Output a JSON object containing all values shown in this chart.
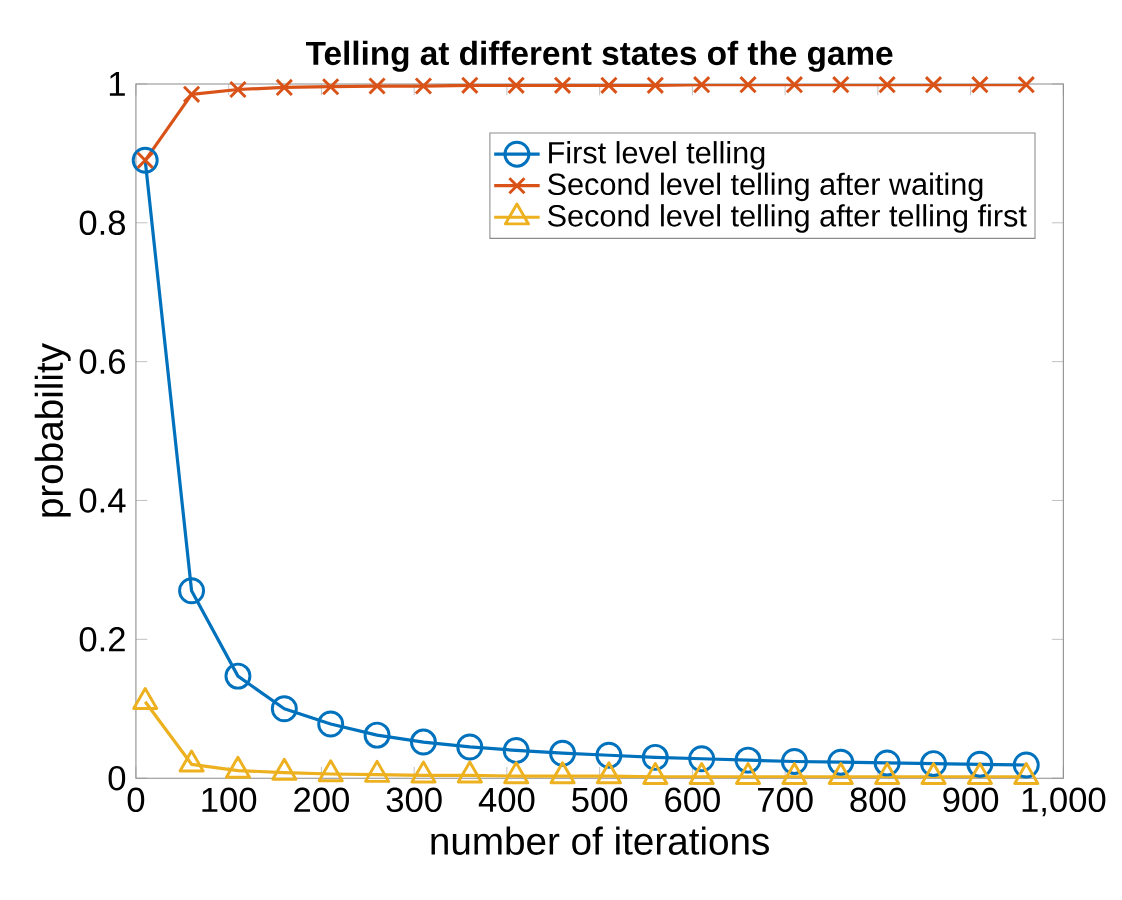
{
  "chart_data": {
    "type": "line",
    "title": "Telling at different states of the game",
    "xlabel": "number of iterations",
    "ylabel": "probability",
    "x": [
      10,
      60,
      110,
      160,
      210,
      260,
      310,
      360,
      410,
      460,
      510,
      560,
      610,
      660,
      710,
      760,
      810,
      860,
      910,
      960
    ],
    "series": [
      {
        "name": "First level telling",
        "color": "#0072bd",
        "marker": "circle",
        "values": [
          0.89,
          0.27,
          0.147,
          0.1,
          0.078,
          0.062,
          0.052,
          0.045,
          0.04,
          0.036,
          0.033,
          0.03,
          0.028,
          0.026,
          0.024,
          0.023,
          0.022,
          0.021,
          0.02,
          0.019
        ]
      },
      {
        "name": "Second level telling after waiting",
        "color": "#d95319",
        "marker": "cross",
        "values": [
          0.89,
          0.985,
          0.992,
          0.995,
          0.996,
          0.997,
          0.997,
          0.998,
          0.998,
          0.998,
          0.998,
          0.998,
          0.999,
          0.999,
          0.999,
          0.999,
          0.999,
          0.999,
          0.999,
          0.999
        ]
      },
      {
        "name": "Second level telling after telling first",
        "color": "#edb120",
        "marker": "triangle",
        "values": [
          0.11,
          0.02,
          0.011,
          0.008,
          0.006,
          0.005,
          0.004,
          0.004,
          0.003,
          0.003,
          0.003,
          0.002,
          0.002,
          0.002,
          0.002,
          0.002,
          0.002,
          0.002,
          0.002,
          0.002
        ]
      }
    ],
    "xlim": [
      0,
      1000
    ],
    "ylim": [
      0,
      1
    ],
    "xticks": [
      0,
      100,
      200,
      300,
      400,
      500,
      600,
      700,
      800,
      900,
      {
        "value": 1000,
        "label": "1,000"
      }
    ],
    "yticks": [
      0,
      0.2,
      0.4,
      0.6,
      0.8,
      1
    ],
    "grid": false,
    "legend": "top right",
    "line_style": "solid"
  }
}
